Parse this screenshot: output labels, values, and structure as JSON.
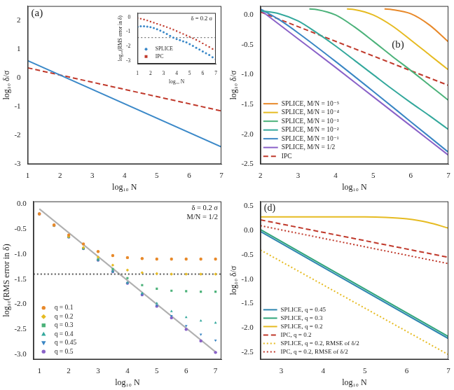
{
  "chart_data": [
    {
      "type": "line",
      "title": "(a)",
      "x_label": "log₁₀ N",
      "y_label": "log₁₀ δ/σ",
      "xlim": [
        1,
        7
      ],
      "ylim": [
        -3,
        2.5
      ],
      "xticks": [
        1,
        2,
        3,
        4,
        5,
        6,
        7
      ],
      "yticks": [
        -3,
        -2,
        -1,
        0,
        1,
        2
      ],
      "grid": false,
      "series": [
        {
          "color": "#3a88c8",
          "line_style": "solid",
          "x": [
            1,
            7
          ],
          "values": [
            0.6,
            -2.4
          ]
        },
        {
          "color": "#c0392b",
          "line_style": "dashed",
          "x": [
            1,
            7
          ],
          "values": [
            0.35,
            -1.15
          ]
        }
      ]
    },
    {
      "type": "scatter",
      "annotations": [
        "δ = 0.2 σ"
      ],
      "x_label": "log₁₀ N",
      "y_label": "log₁₀(RMS error in δ)",
      "xlim": [
        1,
        7
      ],
      "ylim": [
        -3.2,
        0.3
      ],
      "xticks": [
        1,
        2,
        3,
        4,
        5,
        6,
        7
      ],
      "yticks": [
        -3,
        -2,
        -1,
        0
      ],
      "grid": false,
      "legend": "lower left",
      "series": [
        {
          "name": "SPLICE",
          "color": "#3a88c8",
          "marker": "circle",
          "x": [
            1,
            1.25,
            1.5,
            1.75,
            2,
            2.25,
            2.5,
            2.75,
            3,
            3.25,
            3.5,
            3.75,
            4,
            4.25,
            4.5,
            4.75,
            5,
            5.25,
            5.5,
            5.75,
            6,
            6.25,
            6.5,
            6.75,
            7
          ],
          "values": [
            -0.65,
            -0.62,
            -0.62,
            -0.64,
            -0.68,
            -0.74,
            -0.82,
            -0.92,
            -1.03,
            -1.15,
            -1.28,
            -1.4,
            -1.5,
            -1.57,
            -1.65,
            -1.73,
            -1.85,
            -1.97,
            -2.1,
            -2.22,
            -2.35,
            -2.48,
            -2.6,
            -2.75,
            -2.9
          ]
        },
        {
          "name": "IPC",
          "color": "#c0392b",
          "marker": "square",
          "x": [
            1,
            1.25,
            1.5,
            1.75,
            2,
            2.25,
            2.5,
            2.75,
            3,
            3.25,
            3.5,
            3.75,
            4,
            4.25,
            4.5,
            4.75,
            5,
            5.25,
            5.5,
            5.75,
            6,
            6.25,
            6.5,
            6.75,
            7
          ],
          "values": [
            -0.05,
            -0.1,
            -0.15,
            -0.22,
            -0.3,
            -0.37,
            -0.45,
            -0.52,
            -0.6,
            -0.68,
            -0.76,
            -0.85,
            -0.95,
            -1.05,
            -1.15,
            -1.25,
            -1.35,
            -1.45,
            -1.55,
            -1.67,
            -1.8,
            -1.92,
            -2.05,
            -2.18,
            -2.3
          ]
        },
        {
          "color": "#555555",
          "line_style": "dotted",
          "x": [
            1,
            7
          ],
          "values": [
            -1.4,
            -1.4
          ]
        }
      ]
    },
    {
      "type": "line",
      "title": "(b)",
      "x_label": "log₁₀ N",
      "y_label": "log₁₀ δ/σ",
      "xlim": [
        2,
        7
      ],
      "ylim": [
        -2.5,
        0.15
      ],
      "xticks": [
        2,
        3,
        4,
        5,
        6,
        7
      ],
      "yticks": [
        {
          "value": -2.5,
          "label": "-2.5"
        },
        {
          "value": -2,
          "label": "-2.0"
        },
        -1.5,
        {
          "value": -1,
          "label": "-1.0"
        },
        -0.5,
        {
          "value": 0,
          "label": "0.0"
        }
      ],
      "grid": false,
      "legend": "lower left",
      "series": [
        {
          "name": "SPLICE, M/N = 10⁻⁵",
          "color": "#e8892a",
          "line_style": "solid",
          "x": [
            5.3,
            5.5,
            6,
            6.5,
            7
          ],
          "values": [
            0.1,
            0.09,
            0.02,
            -0.17,
            -0.45
          ]
        },
        {
          "name": "SPLICE, M/N = 10⁻⁴",
          "color": "#e6bb22",
          "line_style": "solid",
          "x": [
            4.3,
            4.5,
            5,
            5.5,
            6,
            6.5,
            7
          ],
          "values": [
            0.1,
            0.09,
            0.0,
            -0.18,
            -0.42,
            -0.67,
            -0.92
          ]
        },
        {
          "name": "SPLICE, M/N = 10⁻³",
          "color": "#4cb27a",
          "line_style": "solid",
          "x": [
            3.3,
            3.5,
            4,
            4.5,
            5,
            5.5,
            6,
            6.5,
            7
          ],
          "values": [
            0.1,
            0.09,
            0.0,
            -0.2,
            -0.44,
            -0.69,
            -0.93,
            -1.18,
            -1.43
          ]
        },
        {
          "name": "SPLICE, M/N = 10⁻²",
          "color": "#33a89c",
          "line_style": "solid",
          "x": [
            2,
            2.5,
            3,
            3.5,
            4,
            4.5,
            5,
            5.5,
            6,
            6.5,
            7
          ],
          "values": [
            0.07,
            0.02,
            -0.1,
            -0.3,
            -0.52,
            -0.76,
            -1.0,
            -1.24,
            -1.47,
            -1.69,
            -1.92
          ]
        },
        {
          "name": "SPLICE, M/N = 10⁻¹",
          "color": "#3a86c4",
          "line_style": "solid",
          "x": [
            2,
            2.5,
            3,
            4,
            5,
            6,
            7
          ],
          "values": [
            0.1,
            -0.08,
            -0.3,
            -0.78,
            -1.28,
            -1.79,
            -2.3
          ]
        },
        {
          "name": "SPLICE, M/N = 1/2",
          "color": "#8a62c8",
          "line_style": "solid",
          "x": [
            2,
            3,
            4,
            5,
            6,
            7
          ],
          "values": [
            0.08,
            -0.4,
            -0.88,
            -1.37,
            -1.86,
            -2.35
          ]
        },
        {
          "name": "IPC",
          "color": "#c0392b",
          "line_style": "dashed",
          "x": [
            2,
            7
          ],
          "values": [
            0.05,
            -1.18
          ]
        }
      ]
    },
    {
      "type": "scatter",
      "annotations": [
        "δ = 0.2 σ",
        "M/N = 1/2"
      ],
      "x_label": "log₁₀ N",
      "y_label": "log₁₀(RMS error in δ)",
      "xlim": [
        0.8,
        7.2
      ],
      "ylim": [
        -3.1,
        0.05
      ],
      "xticks": [
        1,
        2,
        3,
        4,
        5,
        6,
        7
      ],
      "yticks": [
        {
          "value": -3,
          "label": "-3.0"
        },
        -2.5,
        {
          "value": -2,
          "label": "-2.0"
        },
        -1.5,
        {
          "value": -1,
          "label": "-1.0"
        },
        -0.5,
        {
          "value": 0,
          "label": "0.0"
        }
      ],
      "grid": false,
      "legend": "lower left",
      "series": [
        {
          "name": "q = 0.1",
          "color": "#e8892a",
          "marker": "circle",
          "x": [
            1,
            1.5,
            2,
            2.5,
            3,
            3.5,
            4,
            4.5,
            5,
            5.5,
            6,
            6.5,
            7
          ],
          "values": [
            -0.2,
            -0.42,
            -0.62,
            -0.8,
            -0.95,
            -1.03,
            -1.07,
            -1.09,
            -1.1,
            -1.1,
            -1.1,
            -1.1,
            -1.1
          ]
        },
        {
          "name": "q = 0.2",
          "color": "#e6bb22",
          "marker": "diamond",
          "x": [
            1,
            1.5,
            2,
            2.5,
            3,
            3.5,
            4,
            4.5,
            5,
            5.5,
            6,
            6.5,
            7
          ],
          "values": [
            -0.2,
            -0.43,
            -0.65,
            -0.87,
            -1.06,
            -1.22,
            -1.32,
            -1.37,
            -1.39,
            -1.4,
            -1.4,
            -1.4,
            -1.4
          ]
        },
        {
          "name": "q = 0.3",
          "color": "#4cb27a",
          "marker": "square",
          "x": [
            1,
            1.5,
            2,
            2.5,
            3,
            3.5,
            4,
            4.5,
            5,
            5.5,
            6,
            6.5,
            7
          ],
          "values": [
            -0.2,
            -0.43,
            -0.66,
            -0.89,
            -1.1,
            -1.3,
            -1.48,
            -1.62,
            -1.69,
            -1.73,
            -1.74,
            -1.75,
            -1.75
          ]
        },
        {
          "name": "q = 0.4",
          "color": "#33a89c",
          "marker": "triangle",
          "x": [
            1,
            1.5,
            2,
            2.5,
            3,
            3.5,
            4,
            4.5,
            5,
            5.5,
            6,
            6.5,
            7
          ],
          "values": [
            -0.2,
            -0.43,
            -0.66,
            -0.89,
            -1.12,
            -1.35,
            -1.57,
            -1.78,
            -1.98,
            -2.14,
            -2.26,
            -2.33,
            -2.37
          ]
        },
        {
          "name": "q = 0.45",
          "color": "#3a86c4",
          "marker": "triangle_down",
          "x": [
            1,
            1.5,
            2,
            2.5,
            3,
            3.5,
            4,
            4.5,
            5,
            5.5,
            6,
            6.5,
            7
          ],
          "values": [
            -0.2,
            -0.43,
            -0.66,
            -0.89,
            -1.12,
            -1.35,
            -1.58,
            -1.8,
            -2.02,
            -2.23,
            -2.43,
            -2.6,
            -2.72
          ]
        },
        {
          "name": "q = 0.5",
          "color": "#8a62c8",
          "marker": "circle",
          "x": [
            1,
            1.5,
            2,
            2.5,
            3,
            3.5,
            4,
            4.5,
            5,
            5.5,
            6,
            6.5,
            7
          ],
          "values": [
            -0.2,
            -0.43,
            -0.66,
            -0.89,
            -1.12,
            -1.35,
            -1.58,
            -1.81,
            -2.04,
            -2.27,
            -2.5,
            -2.73,
            -2.96
          ]
        },
        {
          "color": "#555555",
          "line_style": "dotted",
          "x": [
            0.8,
            7.2
          ],
          "values": [
            -1.4,
            -1.4
          ]
        },
        {
          "color": "#b0b0b0",
          "line_style": "solid",
          "x": [
            1,
            7
          ],
          "values": [
            -0.1,
            -2.95
          ]
        }
      ]
    },
    {
      "type": "line",
      "title": "(d)",
      "x_label": "log₁₀ N",
      "y_label": "log₁₀ δ/σ",
      "xlim": [
        2.5,
        7
      ],
      "ylim": [
        -2.65,
        0.6
      ],
      "xticks": [
        3,
        4,
        5,
        6,
        7
      ],
      "yticks": [
        -2.5,
        {
          "value": -2,
          "label": "-2.0"
        },
        -1.5,
        {
          "value": -1,
          "label": "-1.0"
        },
        -0.5,
        {
          "value": 0,
          "label": "0.0"
        },
        0.5
      ],
      "grid": false,
      "legend": "lower left",
      "series": [
        {
          "name": "SPLICE, q = 0.45",
          "color": "#2e86b0",
          "line_style": "solid",
          "x": [
            2.5,
            7
          ],
          "values": [
            -0.02,
            -2.22
          ]
        },
        {
          "name": "SPLICE, q = 0.3",
          "color": "#2fa57a",
          "line_style": "solid",
          "x": [
            2.5,
            7
          ],
          "values": [
            0.02,
            -2.18
          ]
        },
        {
          "name": "SPLICE, q = 0.2",
          "color": "#e6bb22",
          "line_style": "solid",
          "x": [
            2.5,
            3,
            4,
            5,
            5.5,
            6,
            6.5,
            7
          ],
          "values": [
            0.28,
            0.28,
            0.28,
            0.28,
            0.27,
            0.24,
            0.17,
            0.05
          ]
        },
        {
          "name": "IPC, q = 0.2",
          "color": "#c0392b",
          "line_style": "dashed",
          "x": [
            2.5,
            7
          ],
          "values": [
            0.22,
            -0.55
          ]
        },
        {
          "name": "SPLICE, q = 0.2, RMSE of δ/2",
          "color": "#e6bb22",
          "line_style": "dotted",
          "x": [
            2.5,
            7
          ],
          "values": [
            -0.4,
            -2.55
          ]
        },
        {
          "name": "IPC, q = 0.2, RMSE of δ/2",
          "color": "#c0392b",
          "line_style": "dotted",
          "x": [
            2.5,
            7
          ],
          "values": [
            0.1,
            -0.68
          ]
        }
      ]
    }
  ]
}
